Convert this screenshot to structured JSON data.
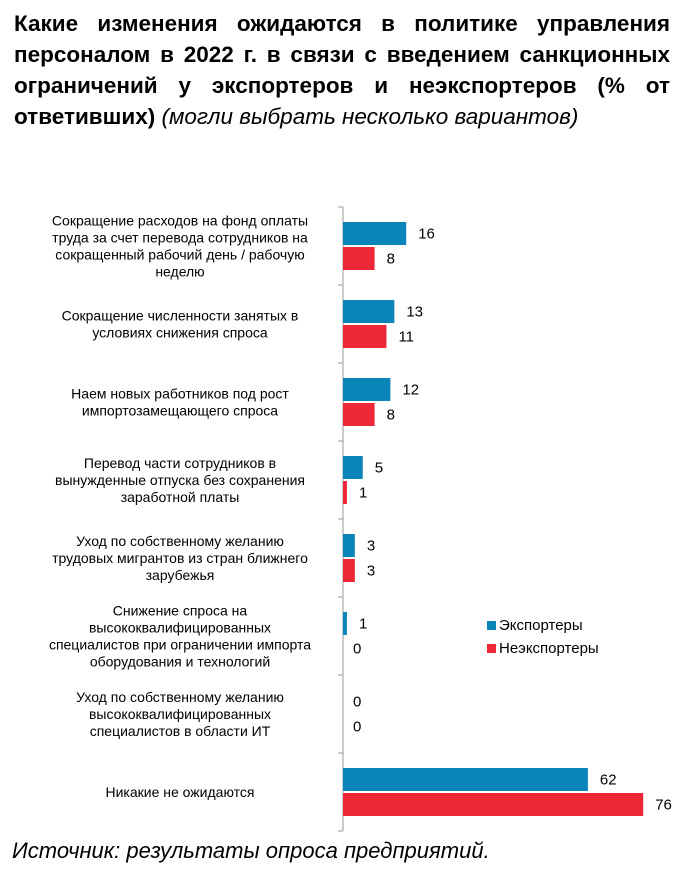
{
  "title_bold": "Какие изменения ожидаются в политике управления персоналом в 2022 г. в связи с введением санкционных ограничений у экспортеров и неэкспортеров (% от ответивших)",
  "title_italic": "(могли выбрать несколько вариантов)",
  "source": "Источник: результаты опроса предприятий.",
  "chart_data": {
    "type": "bar",
    "orientation": "horizontal",
    "categories": [
      [
        "Сокращение расходов на фонд оплаты",
        "труда за счет перевода сотрудников на",
        "сокращенный рабочий день / рабочую",
        "неделю"
      ],
      [
        "Сокращение численности занятых в",
        "условиях снижения спроса"
      ],
      [
        "Наем новых работников под рост",
        "импортозамещающего спроса"
      ],
      [
        "Перевод части сотрудников в",
        "вынужденные отпуска без сохранения",
        "заработной платы"
      ],
      [
        "Уход по собственному желанию",
        "трудовых мигрантов из стран ближнего",
        "зарубежья"
      ],
      [
        "Снижение спроса на",
        "высококвалифицированных",
        "специалистов при ограничении импорта",
        "оборудования и технологий"
      ],
      [
        "Уход по собственному желанию",
        "высококвалифицированных",
        "специалистов в области ИТ"
      ],
      [
        "Никакие не ожидаются"
      ]
    ],
    "series": [
      {
        "name": "Экспортеры",
        "color": "#0b84b9",
        "values": [
          16,
          13,
          12,
          5,
          3,
          1,
          0,
          62
        ]
      },
      {
        "name": "Неэкспортеры",
        "color": "#ee2737",
        "values": [
          8,
          11,
          8,
          1,
          3,
          0,
          0,
          76
        ]
      }
    ],
    "xlim": [
      0,
      76
    ],
    "legend": "right",
    "grid": false,
    "data_labels": true
  }
}
